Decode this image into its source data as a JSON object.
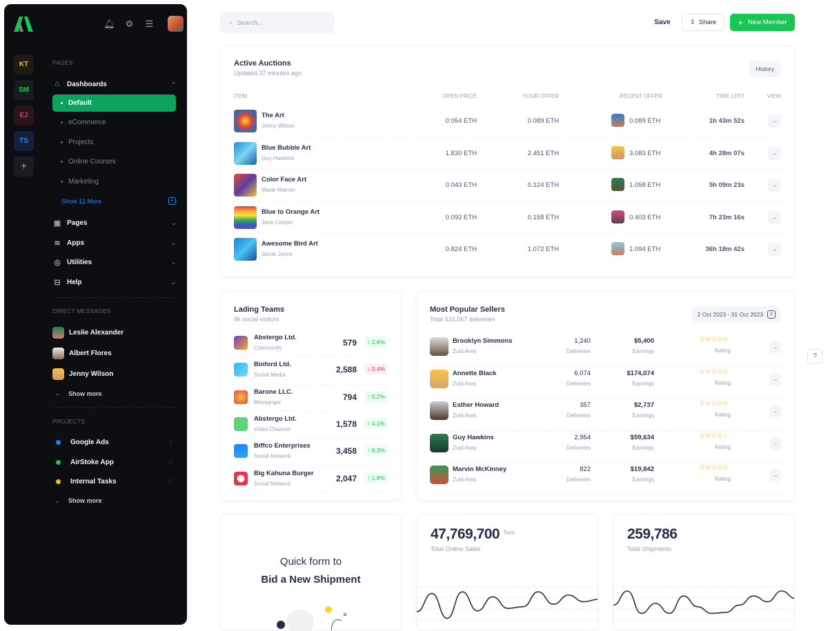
{
  "sidebar": {
    "rail": [
      {
        "label": "KT",
        "color": "#f6c000",
        "bg": "#1e1b13"
      },
      {
        "label": "SM",
        "color": "#17c653",
        "bg": "#151c20"
      },
      {
        "label": "EJ",
        "color": "#f8285a",
        "bg": "#2a151b"
      },
      {
        "label": "TS",
        "color": "#1b84ff",
        "bg": "#15203a"
      },
      {
        "label": "+",
        "color": "#9a9cae",
        "bg": "#1b1c22"
      }
    ],
    "pages_heading": "PAGES",
    "dashboards": "Dashboards",
    "dash_items": [
      "Default",
      "eCommerce",
      "Projects",
      "Online Courses",
      "Marketing"
    ],
    "show_more_pages": "Show 12 More",
    "menu": [
      {
        "label": "Pages",
        "icon": "calendar-icon"
      },
      {
        "label": "Apps",
        "icon": "layers-icon"
      },
      {
        "label": "Utilities",
        "icon": "aperture-icon"
      },
      {
        "label": "Help",
        "icon": "briefcase-icon"
      }
    ],
    "dm_heading": "DIRECT MESSAGES",
    "dms": [
      "Leslie Alexander",
      "Albert Flores",
      "Jenny Wilson"
    ],
    "dm_show_more": "Show more",
    "projects_heading": "PROJECTS",
    "projects": [
      {
        "label": "Google Ads",
        "color": "#1b84ff",
        "count": "6"
      },
      {
        "label": "AirStoke App",
        "color": "#17c653",
        "count": "2"
      },
      {
        "label": "Internal Tasks",
        "color": "#f6c000",
        "count": "37"
      }
    ],
    "projects_show_more": "Show more"
  },
  "toolbar": {
    "search_placeholder": "Search...",
    "save": "Save",
    "share": "Share",
    "new_member": "New Member"
  },
  "auctions": {
    "title": "Active Auctions",
    "subtitle": "Updated 37 minutes ago",
    "history": "History",
    "headers": [
      "ITEM",
      "OPEN PRICE",
      "YOUR OFFER",
      "RECENT OFFER",
      "TIME LEFT",
      "VIEW"
    ],
    "rows": [
      {
        "name": "The Art",
        "artist": "Jenny Wilson",
        "open": "0.054 ETH",
        "offer": "0.089 ETH",
        "recent": "0.089 ETH",
        "time": "1h 43m 52s"
      },
      {
        "name": "Blue Bubble Art",
        "artist": "Guy Hawkins",
        "open": "1.830 ETH",
        "offer": "2.451 ETH",
        "recent": "3.083 ETH",
        "time": "4h 28m 07s"
      },
      {
        "name": "Color Face Art",
        "artist": "Wade Warren",
        "open": "0.043 ETH",
        "offer": "0.124 ETH",
        "recent": "1.058 ETH",
        "time": "5h 09m 23s"
      },
      {
        "name": "Blue to Orange Art",
        "artist": "Jane Cooper",
        "open": "0.092 ETH",
        "offer": "0.158 ETH",
        "recent": "0.403 ETH",
        "time": "7h 23m 16s"
      },
      {
        "name": "Awesome Bird Art",
        "artist": "Jacob Jones",
        "open": "0.824 ETH",
        "offer": "1.072 ETH",
        "recent": "1.094 ETH",
        "time": "36h 18m 42s"
      }
    ]
  },
  "teams": {
    "title": "Lading Teams",
    "subtitle": "8k social visitors",
    "rows": [
      {
        "name": "Abstergo Ltd.",
        "category": "Community",
        "value": "579",
        "change": "2.6%",
        "dir": "up"
      },
      {
        "name": "Binford Ltd.",
        "category": "Social Media",
        "value": "2,588",
        "change": "0.4%",
        "dir": "down"
      },
      {
        "name": "Barone LLC.",
        "category": "Messanger",
        "value": "794",
        "change": "0.2%",
        "dir": "up"
      },
      {
        "name": "Abstergo Ltd.",
        "category": "Video Channel",
        "value": "1,578",
        "change": "4.1%",
        "dir": "up"
      },
      {
        "name": "Biffco Enterprises",
        "category": "Social Network",
        "value": "3,458",
        "change": "8.3%",
        "dir": "up"
      },
      {
        "name": "Big Kahuna Burger",
        "category": "Social Network",
        "value": "2,047",
        "change": "1.9%",
        "dir": "up"
      }
    ]
  },
  "sellers": {
    "title": "Most Popular Sellers",
    "subtitle": "Total 424,567 deliveries",
    "date_range": "2 Oct 2023 - 31 Oct 2023",
    "deliveries_label": "Deliveries",
    "earnings_label": "Earnings",
    "rating_label": "Rating",
    "rows": [
      {
        "name": "Brooklyn Simmons",
        "area": "Zuid Area",
        "deliveries": "1,240",
        "earnings": "$5,400",
        "rating": 5
      },
      {
        "name": "Annette Black",
        "area": "Zuid Area",
        "deliveries": "6,074",
        "earnings": "$174,074",
        "rating": 5
      },
      {
        "name": "Esther Howard",
        "area": "Zuid Area",
        "deliveries": "357",
        "earnings": "$2,737",
        "rating": 5
      },
      {
        "name": "Guy Hawkins",
        "area": "Zuid Area",
        "deliveries": "2,954",
        "earnings": "$59,634",
        "rating": 4
      },
      {
        "name": "Marvin McKinney",
        "area": "Zuid Area",
        "deliveries": "822",
        "earnings": "$19,842",
        "rating": 5
      }
    ]
  },
  "quick_form": {
    "line1": "Quick form to",
    "line2": "Bid a New Shipment"
  },
  "online_sales": {
    "value": "47,769,700",
    "unit": "Tons",
    "label": "Total Online Sales",
    "spark": [
      2,
      4.2,
      1.2,
      4.4,
      2.1,
      3.8,
      2.4,
      2.6,
      4.4,
      2.9,
      4,
      3.2,
      3.5
    ]
  },
  "shipments": {
    "value": "259,786",
    "label": "Total Shipments",
    "spark": [
      2.8,
      4.5,
      1.8,
      3,
      1.8,
      3.9,
      2.6,
      1.8,
      1.9,
      2.8,
      3.9,
      3.2,
      4.5,
      3.6
    ]
  }
}
